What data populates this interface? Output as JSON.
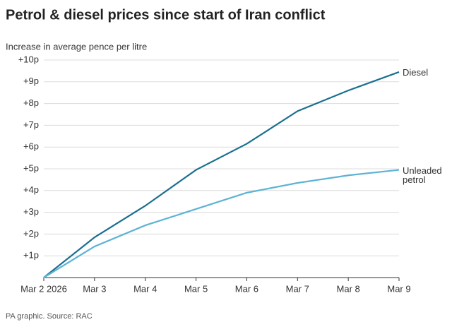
{
  "chart_data": {
    "type": "line",
    "title": "Petrol & diesel prices since start of Iran conflict",
    "subtitle": "Increase in average pence per litre",
    "source": "PA graphic. Source: RAC",
    "categories": [
      "Mar 2 2026",
      "Mar 3",
      "Mar 4",
      "Mar 5",
      "Mar 6",
      "Mar 7",
      "Mar 8",
      "Mar 9"
    ],
    "series": [
      {
        "name": "Diesel",
        "color": "#1b6f8f",
        "values": [
          0,
          1.85,
          3.3,
          4.95,
          6.15,
          7.65,
          8.6,
          9.45
        ]
      },
      {
        "name": "Unleaded petrol",
        "color": "#5cb3d5",
        "values": [
          0,
          1.43,
          2.4,
          3.15,
          3.9,
          4.35,
          4.7,
          4.95
        ]
      }
    ],
    "ylim": [
      0,
      10
    ],
    "yticks": [
      {
        "value": 1,
        "label": "+1p"
      },
      {
        "value": 2,
        "label": "+2p"
      },
      {
        "value": 3,
        "label": "+3p"
      },
      {
        "value": 4,
        "label": "+4p"
      },
      {
        "value": 5,
        "label": "+5p"
      },
      {
        "value": 6,
        "label": "+6p"
      },
      {
        "value": 7,
        "label": "+7p"
      },
      {
        "value": 8,
        "label": "+8p"
      },
      {
        "value": 9,
        "label": "+9p"
      },
      {
        "value": 10,
        "label": "+10p"
      }
    ],
    "grid": true
  }
}
